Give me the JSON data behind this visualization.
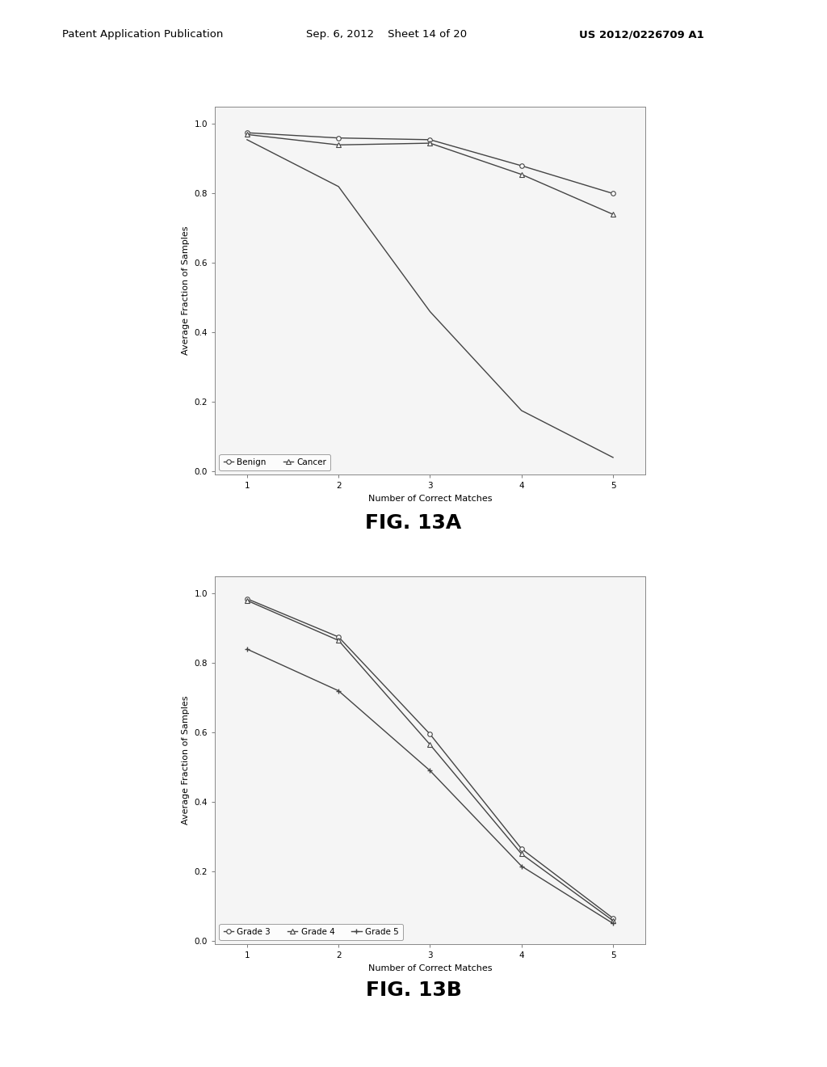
{
  "fig13a": {
    "x": [
      1,
      2,
      3,
      4,
      5
    ],
    "benign": [
      0.975,
      0.96,
      0.955,
      0.88,
      0.8
    ],
    "cancer": [
      0.97,
      0.94,
      0.945,
      0.855,
      0.74
    ],
    "steep": [
      0.955,
      0.82,
      0.46,
      0.175,
      0.04
    ],
    "ylabel": "Average Fraction of Samples",
    "xlabel": "Number of Correct Matches",
    "yticks": [
      0.0,
      0.2,
      0.4,
      0.6,
      0.8,
      1.0
    ],
    "xticks": [
      1,
      2,
      3,
      4,
      5
    ],
    "legend_labels": [
      "Benign",
      "Cancer"
    ],
    "legend_markers": [
      "o",
      "^"
    ],
    "title_label": "FIG. 13A"
  },
  "fig13b": {
    "x": [
      1,
      2,
      3,
      4,
      5
    ],
    "grade3": [
      0.985,
      0.875,
      0.595,
      0.265,
      0.065
    ],
    "grade4": [
      0.98,
      0.865,
      0.565,
      0.25,
      0.058
    ],
    "grade5": [
      0.84,
      0.72,
      0.49,
      0.215,
      0.05
    ],
    "ylabel": "Average Fraction of Samples",
    "xlabel": "Number of Correct Matches",
    "yticks": [
      0.0,
      0.2,
      0.4,
      0.6,
      0.8,
      1.0
    ],
    "xticks": [
      1,
      2,
      3,
      4,
      5
    ],
    "legend_labels": [
      "Grade 3",
      "Grade 4",
      "Grade 5"
    ],
    "legend_markers": [
      "o",
      "^",
      "+"
    ],
    "title_label": "FIG. 13B"
  },
  "header_left": "Patent Application Publication",
  "header_center": "Sep. 6, 2012    Sheet 14 of 20",
  "header_right": "US 2012/0226709 A1",
  "line_color": "#444444",
  "plot_bg": "#f5f5f5"
}
